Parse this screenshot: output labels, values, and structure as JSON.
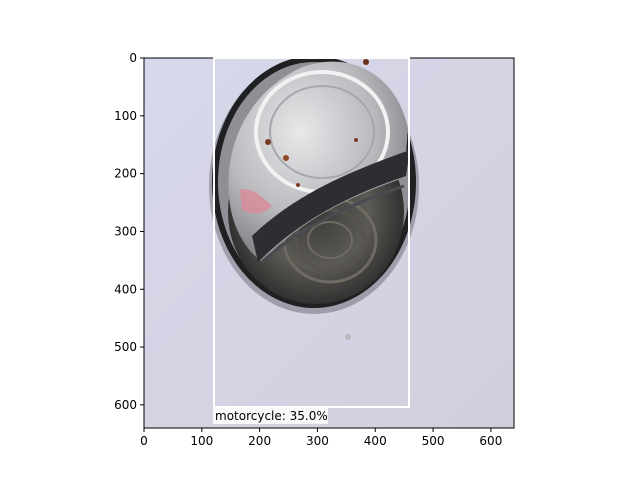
{
  "axes": {
    "x_ticks": [
      "0",
      "100",
      "200",
      "300",
      "400",
      "500",
      "600"
    ],
    "y_ticks": [
      "0",
      "100",
      "200",
      "300",
      "400",
      "500",
      "600"
    ]
  },
  "image": {
    "subject": "opened tin can with partially lifted lid, viewed from above on light gray background"
  },
  "detection": {
    "label": "motorcycle: 35.0%",
    "box_color": "#ffffff",
    "label_bg": "#ffffff"
  },
  "colors": {
    "background": "#dcdbe8",
    "can_rim": "#2a2a2c",
    "lid": "#c9cacc"
  }
}
